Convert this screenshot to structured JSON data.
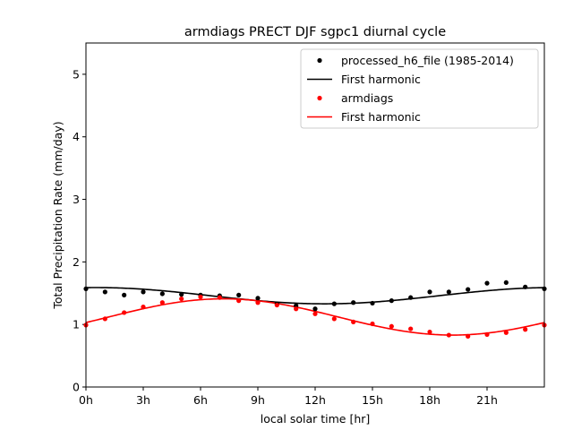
{
  "chart_data": {
    "type": "scatter",
    "title": "armdiags PRECT DJF sgpc1 diurnal cycle",
    "xlabel": "local solar time [hr]",
    "ylabel": "Total Precipitation Rate (mm/day)",
    "xlim": [
      0,
      24
    ],
    "ylim": [
      0,
      5.5
    ],
    "x_ticks": [
      0,
      3,
      6,
      9,
      12,
      15,
      18,
      21
    ],
    "x_tick_labels": [
      "0h",
      "3h",
      "6h",
      "9h",
      "12h",
      "15h",
      "18h",
      "21h"
    ],
    "y_ticks": [
      0,
      1,
      2,
      3,
      4,
      5
    ],
    "y_tick_labels": [
      "0",
      "1",
      "2",
      "3",
      "4",
      "5"
    ],
    "grid": false,
    "legend_position": "top-right",
    "x": [
      0,
      1,
      2,
      3,
      4,
      5,
      6,
      7,
      8,
      9,
      10,
      11,
      12,
      13,
      14,
      15,
      16,
      17,
      18,
      19,
      20,
      21,
      22,
      23,
      24
    ],
    "series": [
      {
        "name": "processed_h6_file (1985-2014)",
        "kind": "points",
        "color": "#000000",
        "values": [
          1.57,
          1.52,
          1.47,
          1.52,
          1.49,
          1.48,
          1.47,
          1.46,
          1.47,
          1.42,
          1.33,
          1.3,
          1.25,
          1.33,
          1.35,
          1.34,
          1.38,
          1.43,
          1.52,
          1.52,
          1.56,
          1.66,
          1.67,
          1.6,
          1.57
        ]
      },
      {
        "name": "First harmonic",
        "kind": "line",
        "color": "#000000",
        "harmonic": {
          "mean": 1.46,
          "amplitude": 0.13,
          "peak_hour": 0.5
        }
      },
      {
        "name": "armdiags",
        "kind": "points",
        "color": "#ff0000",
        "values": [
          0.99,
          1.09,
          1.19,
          1.28,
          1.35,
          1.41,
          1.44,
          1.43,
          1.38,
          1.35,
          1.31,
          1.25,
          1.17,
          1.09,
          1.04,
          1.01,
          0.97,
          0.93,
          0.88,
          0.83,
          0.81,
          0.84,
          0.87,
          0.92,
          0.99
        ]
      },
      {
        "name": "First harmonic",
        "kind": "line",
        "color": "#ff0000",
        "harmonic": {
          "mean": 1.12,
          "amplitude": 0.29,
          "peak_hour": 7.2
        }
      }
    ]
  }
}
